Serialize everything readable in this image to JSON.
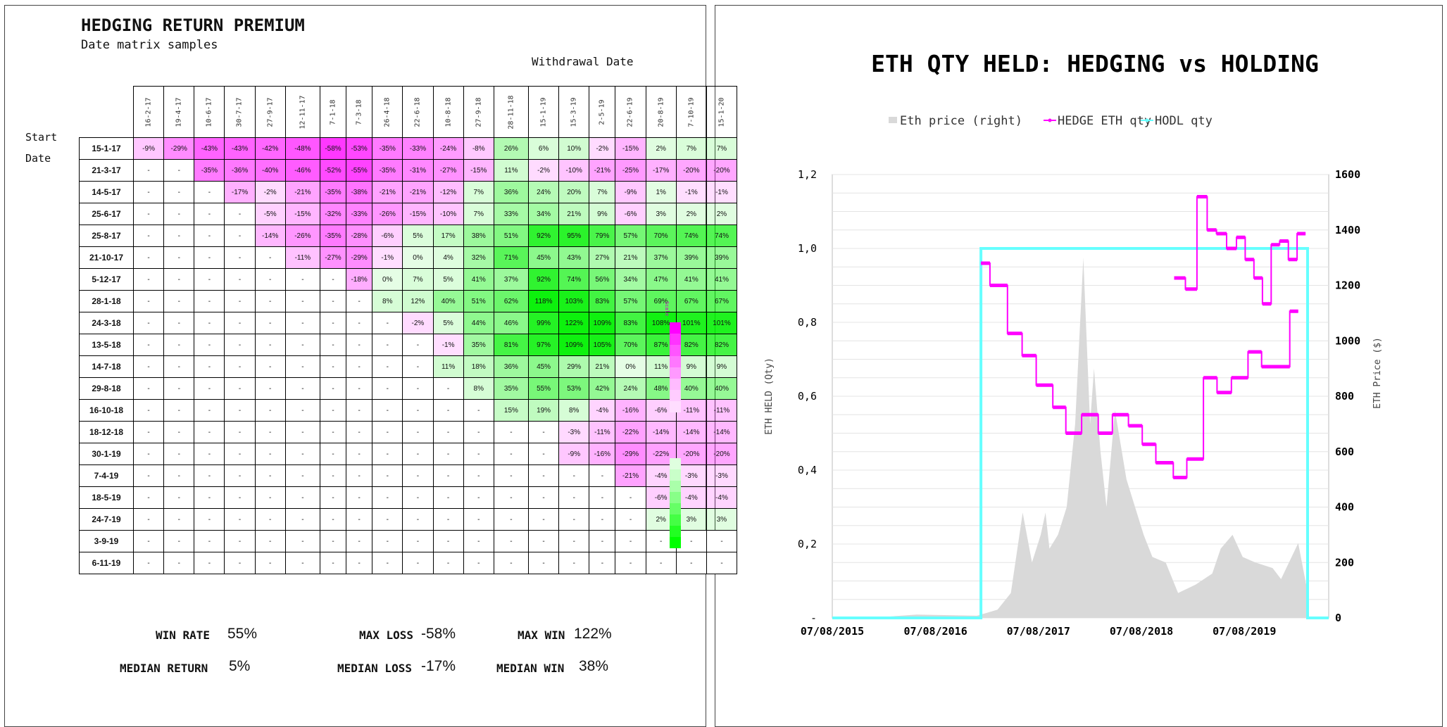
{
  "heatmap": {
    "title": "HEDGING RETURN PREMIUM",
    "subtitle": "Date matrix samples",
    "withdrawal_label": "Withdrawal Date",
    "start_label_1": "Start",
    "start_label_2": "Date",
    "scale_label": "Scale",
    "columns": [
      "16-2-17",
      "19-4-17",
      "10-6-17",
      "30-7-17",
      "27-9-17",
      "12-11-17",
      "7-1-18",
      "7-3-18",
      "26-4-18",
      "22-6-18",
      "10-8-18",
      "27-9-18",
      "28-11-18",
      "15-1-19",
      "15-3-19",
      "2-5-19",
      "22-6-19",
      "20-8-19",
      "7-10-19",
      "15-1-20"
    ],
    "rows": [
      {
        "date": "15-1-17",
        "cells": [
          "-9%",
          "-29%",
          "-43%",
          "-43%",
          "-42%",
          "-48%",
          "-58%",
          "-53%",
          "-35%",
          "-33%",
          "-24%",
          "-8%",
          "26%",
          "6%",
          "10%",
          "-2%",
          "-15%",
          "2%",
          "7%",
          "7%"
        ]
      },
      {
        "date": "21-3-17",
        "cells": [
          "-",
          "-",
          "-35%",
          "-36%",
          "-40%",
          "-46%",
          "-52%",
          "-55%",
          "-35%",
          "-31%",
          "-27%",
          "-15%",
          "11%",
          "-2%",
          "-10%",
          "-21%",
          "-25%",
          "-17%",
          "-20%",
          "-20%"
        ]
      },
      {
        "date": "14-5-17",
        "cells": [
          "-",
          "-",
          "-",
          "-17%",
          "-2%",
          "-21%",
          "-35%",
          "-38%",
          "-21%",
          "-21%",
          "-12%",
          "7%",
          "36%",
          "24%",
          "20%",
          "7%",
          "-9%",
          "1%",
          "-1%",
          "-1%"
        ]
      },
      {
        "date": "25-6-17",
        "cells": [
          "-",
          "-",
          "-",
          "-",
          "-5%",
          "-15%",
          "-32%",
          "-33%",
          "-26%",
          "-15%",
          "-10%",
          "7%",
          "33%",
          "34%",
          "21%",
          "9%",
          "-6%",
          "3%",
          "2%",
          "2%"
        ]
      },
      {
        "date": "25-8-17",
        "cells": [
          "-",
          "-",
          "-",
          "-",
          "-14%",
          "-26%",
          "-35%",
          "-28%",
          "-6%",
          "5%",
          "17%",
          "38%",
          "51%",
          "92%",
          "95%",
          "79%",
          "57%",
          "70%",
          "74%",
          "74%"
        ]
      },
      {
        "date": "21-10-17",
        "cells": [
          "-",
          "-",
          "-",
          "-",
          "-",
          "-11%",
          "-27%",
          "-29%",
          "-1%",
          "0%",
          "4%",
          "32%",
          "71%",
          "45%",
          "43%",
          "27%",
          "21%",
          "37%",
          "39%",
          "39%"
        ]
      },
      {
        "date": "5-12-17",
        "cells": [
          "-",
          "-",
          "-",
          "-",
          "-",
          "-",
          "-",
          "-18%",
          "0%",
          "7%",
          "5%",
          "41%",
          "37%",
          "92%",
          "74%",
          "56%",
          "34%",
          "47%",
          "41%",
          "41%"
        ]
      },
      {
        "date": "28-1-18",
        "cells": [
          "-",
          "-",
          "-",
          "-",
          "-",
          "-",
          "-",
          "-",
          "8%",
          "12%",
          "40%",
          "51%",
          "62%",
          "118%",
          "103%",
          "83%",
          "57%",
          "69%",
          "67%",
          "67%"
        ]
      },
      {
        "date": "24-3-18",
        "cells": [
          "-",
          "-",
          "-",
          "-",
          "-",
          "-",
          "-",
          "-",
          "-",
          "-2%",
          "5%",
          "44%",
          "46%",
          "99%",
          "122%",
          "109%",
          "83%",
          "108%",
          "101%",
          "101%"
        ]
      },
      {
        "date": "13-5-18",
        "cells": [
          "-",
          "-",
          "-",
          "-",
          "-",
          "-",
          "-",
          "-",
          "-",
          "-",
          "-1%",
          "35%",
          "81%",
          "97%",
          "109%",
          "105%",
          "70%",
          "87%",
          "82%",
          "82%"
        ]
      },
      {
        "date": "14-7-18",
        "cells": [
          "-",
          "-",
          "-",
          "-",
          "-",
          "-",
          "-",
          "-",
          "-",
          "-",
          "11%",
          "18%",
          "36%",
          "45%",
          "29%",
          "21%",
          "0%",
          "11%",
          "9%",
          "9%"
        ]
      },
      {
        "date": "29-8-18",
        "cells": [
          "-",
          "-",
          "-",
          "-",
          "-",
          "-",
          "-",
          "-",
          "-",
          "-",
          "-",
          "8%",
          "35%",
          "55%",
          "53%",
          "42%",
          "24%",
          "48%",
          "40%",
          "40%"
        ]
      },
      {
        "date": "16-10-18",
        "cells": [
          "-",
          "-",
          "-",
          "-",
          "-",
          "-",
          "-",
          "-",
          "-",
          "-",
          "-",
          "-",
          "15%",
          "19%",
          "8%",
          "-4%",
          "-16%",
          "-6%",
          "-11%",
          "-11%"
        ]
      },
      {
        "date": "18-12-18",
        "cells": [
          "-",
          "-",
          "-",
          "-",
          "-",
          "-",
          "-",
          "-",
          "-",
          "-",
          "-",
          "-",
          "-",
          "-",
          "-3%",
          "-11%",
          "-22%",
          "-14%",
          "-14%",
          "-14%"
        ]
      },
      {
        "date": "30-1-19",
        "cells": [
          "-",
          "-",
          "-",
          "-",
          "-",
          "-",
          "-",
          "-",
          "-",
          "-",
          "-",
          "-",
          "-",
          "-",
          "-9%",
          "-16%",
          "-29%",
          "-22%",
          "-20%",
          "-20%"
        ]
      },
      {
        "date": "7-4-19",
        "cells": [
          "-",
          "-",
          "-",
          "-",
          "-",
          "-",
          "-",
          "-",
          "-",
          "-",
          "-",
          "-",
          "-",
          "-",
          "-",
          "-",
          "-21%",
          "-4%",
          "-3%",
          "-3%"
        ]
      },
      {
        "date": "18-5-19",
        "cells": [
          "-",
          "-",
          "-",
          "-",
          "-",
          "-",
          "-",
          "-",
          "-",
          "-",
          "-",
          "-",
          "-",
          "-",
          "-",
          "-",
          "-",
          "-6%",
          "-4%",
          "-4%"
        ]
      },
      {
        "date": "24-7-19",
        "cells": [
          "-",
          "-",
          "-",
          "-",
          "-",
          "-",
          "-",
          "-",
          "-",
          "-",
          "-",
          "-",
          "-",
          "-",
          "-",
          "-",
          "-",
          "2%",
          "3%",
          "3%"
        ]
      },
      {
        "date": "3-9-19",
        "cells": [
          "-",
          "-",
          "-",
          "-",
          "-",
          "-",
          "-",
          "-",
          "-",
          "-",
          "-",
          "-",
          "-",
          "-",
          "-",
          "-",
          "-",
          "-",
          "-",
          "-"
        ]
      },
      {
        "date": "6-11-19",
        "cells": [
          "-",
          "-",
          "-",
          "-",
          "-",
          "-",
          "-",
          "-",
          "-",
          "-",
          "-",
          "-",
          "-",
          "-",
          "-",
          "-",
          "-",
          "-",
          "-",
          "-"
        ]
      }
    ],
    "colors": {
      "negative": "#ff00ff",
      "positive": "#00ff00"
    }
  },
  "stats": {
    "win_rate_label": "WIN RATE",
    "win_rate": "55%",
    "max_loss_label": "MAX LOSS",
    "max_loss": "-58%",
    "max_win_label": "MAX WIN",
    "max_win": "122%",
    "median_return_label": "MEDIAN RETURN",
    "median_return": "5%",
    "median_loss_label": "MEDIAN LOSS",
    "median_loss": "-17%",
    "median_win_label": "MEDIAN WIN",
    "median_win": "38%"
  },
  "chart_data": {
    "type": "line",
    "title": "ETH QTY HELD: HEDGING vs HOLDING",
    "ylabel": "ETH HELD (Qty)",
    "y2label": "ETH Price ($)",
    "legend_placement": "top",
    "xticks": [
      "07/08/2015",
      "07/08/2016",
      "07/08/2017",
      "07/08/2018",
      "07/08/2019"
    ],
    "yticks": [
      "-",
      "0,2",
      "0,4",
      "0,6",
      "0,8",
      "1,0",
      "1,2"
    ],
    "y2ticks": [
      "0",
      "200",
      "400",
      "600",
      "800",
      "1000",
      "1200",
      "1400",
      "1600"
    ],
    "ylim": [
      0,
      1.2
    ],
    "y2lim": [
      0,
      1600
    ],
    "grid": true,
    "series": [
      {
        "name": "Eth price  (right)",
        "type": "area",
        "color": "#d9d9d9",
        "x": [
          "2015-08-07",
          "2016-01-01",
          "2016-06-01",
          "2017-01-01",
          "2017-03-15",
          "2017-05-01",
          "2017-06-12",
          "2017-07-15",
          "2017-08-15",
          "2017-09-01",
          "2017-09-15",
          "2017-10-15",
          "2017-11-15",
          "2017-12-15",
          "2018-01-13",
          "2018-02-06",
          "2018-02-20",
          "2018-03-15",
          "2018-04-05",
          "2018-05-05",
          "2018-06-15",
          "2018-08-15",
          "2018-09-15",
          "2018-11-01",
          "2018-12-15",
          "2019-02-15",
          "2019-04-15",
          "2019-05-15",
          "2019-06-26",
          "2019-08-01",
          "2019-09-15",
          "2019-11-15",
          "2019-12-15",
          "2020-02-14",
          "2020-03-13",
          "2020-03-20"
        ],
        "y": [
          3,
          1,
          12,
          8,
          30,
          90,
          380,
          200,
          300,
          380,
          250,
          300,
          400,
          700,
          1300,
          700,
          900,
          600,
          400,
          750,
          500,
          300,
          220,
          200,
          90,
          120,
          160,
          250,
          300,
          220,
          200,
          180,
          140,
          270,
          120,
          140
        ]
      },
      {
        "name": "HEDGE ETH qty",
        "type": "step",
        "color": "#ff00ff",
        "x": [
          "2017-01-15",
          "2017-02-16",
          "2017-04-19",
          "2017-06-10",
          "2017-07-30",
          "2017-09-27",
          "2017-11-12",
          "2018-01-07",
          "2018-03-07",
          "2018-04-26",
          "2018-06-22",
          "2018-08-10",
          "2018-09-27",
          "2018-11-28",
          "2019-01-15",
          "2019-03-15",
          "2019-05-02",
          "2019-06-22",
          "2019-08-20",
          "2019-10-07",
          "2020-01-15"
        ],
        "y": [
          0.96,
          0.9,
          0.77,
          0.71,
          0.63,
          0.57,
          0.5,
          0.55,
          0.5,
          0.55,
          0.52,
          0.47,
          0.42,
          0.38,
          0.43,
          0.65,
          0.61,
          0.65,
          0.72,
          0.68,
          0.83
        ]
      },
      {
        "name": "HODL qty",
        "type": "step",
        "color": "#66ffff",
        "x": [
          "2015-08-07",
          "2017-01-15",
          "2017-01-15",
          "2020-03-18",
          "2020-03-18",
          "2020-06-01"
        ],
        "y": [
          0,
          0,
          1.0,
          1.0,
          0,
          0
        ]
      }
    ],
    "hedge_continued": {
      "x": [
        "2018-12-01",
        "2019-01-10",
        "2019-02-20",
        "2019-03-28",
        "2019-04-30",
        "2019-06-05",
        "2019-07-10",
        "2019-08-10",
        "2019-09-10",
        "2019-10-10",
        "2019-11-10",
        "2019-12-10",
        "2020-01-10",
        "2020-02-10"
      ],
      "y": [
        0.92,
        0.89,
        1.14,
        1.05,
        1.04,
        1.0,
        1.03,
        0.97,
        0.92,
        0.85,
        1.01,
        1.02,
        0.97,
        1.04
      ]
    }
  }
}
